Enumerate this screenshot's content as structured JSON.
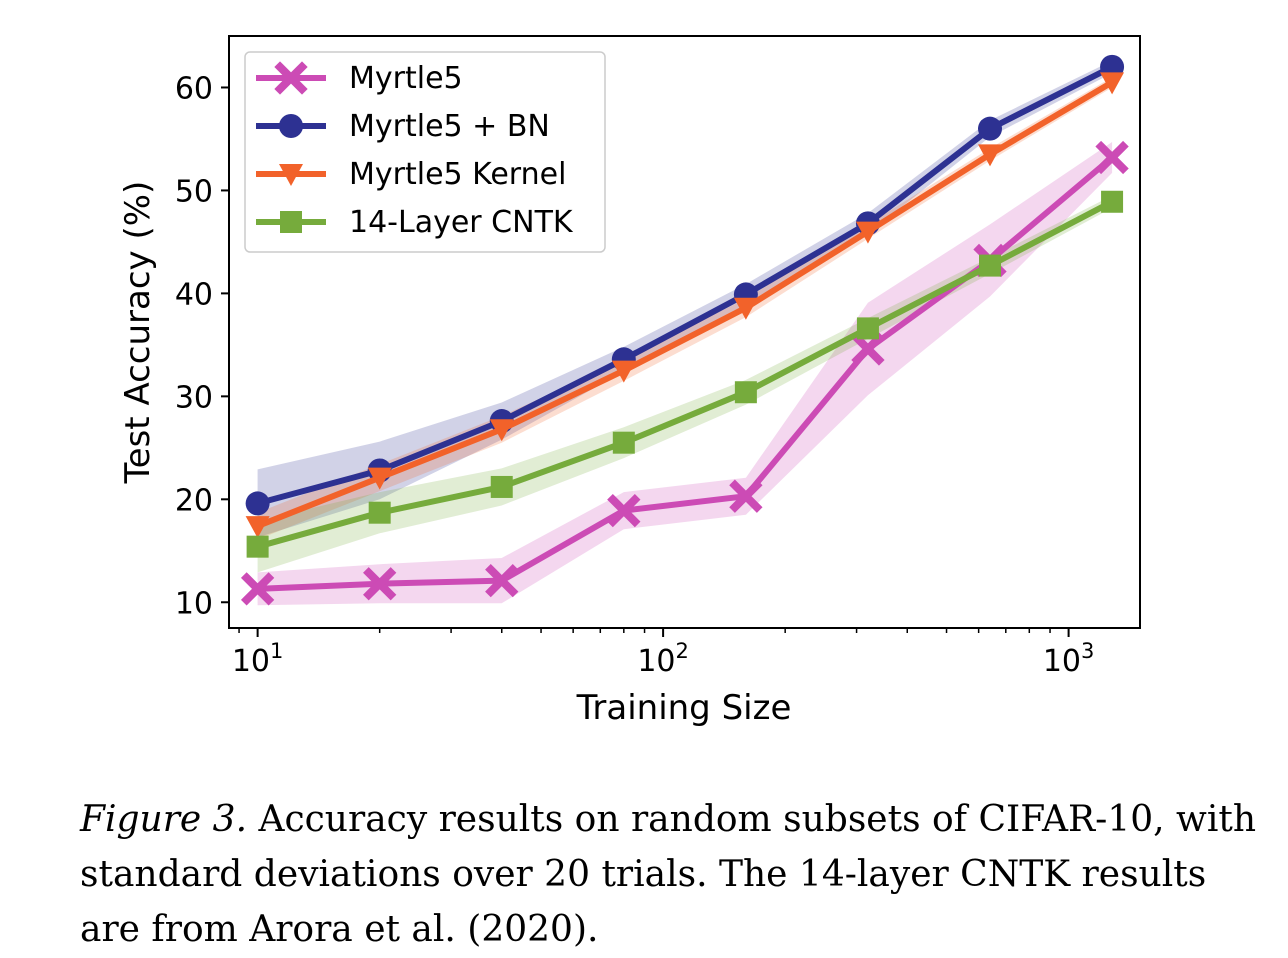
{
  "chart_data": {
    "type": "line",
    "xscale": "log",
    "x": [
      10,
      20,
      40,
      80,
      160,
      320,
      640,
      1280
    ],
    "xlim": [
      8.5,
      1500
    ],
    "ylim": [
      7.5,
      65
    ],
    "xlabel": "Training Size",
    "ylabel": "Test Accuracy (%)",
    "yticks": [
      10,
      20,
      30,
      40,
      50,
      60
    ],
    "xticks": [
      {
        "value": 10,
        "base": "10",
        "exp": "1"
      },
      {
        "value": 100,
        "base": "10",
        "exp": "2"
      },
      {
        "value": 1000,
        "base": "10",
        "exp": "3"
      }
    ],
    "legend_position": "top-left",
    "series": [
      {
        "name": "Myrtle5",
        "color": "#cc4bb5",
        "marker": "x",
        "values": [
          11.3,
          11.8,
          12.1,
          18.9,
          20.3,
          34.6,
          43.2,
          53.2
        ],
        "std": [
          1.6,
          1.9,
          2.2,
          1.8,
          1.8,
          4.5,
          3.5,
          1.5
        ]
      },
      {
        "name": "Myrtle5 + BN",
        "color": "#2d3192",
        "marker": "circle",
        "values": [
          19.6,
          22.8,
          27.6,
          33.6,
          39.9,
          46.8,
          56.0,
          62.0
        ],
        "std": [
          3.3,
          2.8,
          1.8,
          1.2,
          1.0,
          1.0,
          0.8,
          0.6
        ]
      },
      {
        "name": "Myrtle5 Kernel",
        "color": "#f2622a",
        "marker": "triangle",
        "values": [
          17.4,
          22.1,
          26.8,
          32.5,
          38.6,
          46.0,
          53.5,
          60.5
        ],
        "std": [
          1.3,
          1.3,
          1.3,
          1.0,
          0.9,
          0.7,
          0.6,
          0.5
        ]
      },
      {
        "name": "14-Layer CNTK",
        "color": "#76ab3c",
        "marker": "square",
        "values": [
          15.4,
          18.7,
          21.2,
          25.5,
          30.4,
          36.6,
          42.7,
          48.9
        ],
        "std": [
          2.5,
          2.0,
          1.8,
          1.5,
          1.2,
          1.0,
          0.8,
          0.6
        ]
      }
    ]
  },
  "caption": {
    "label": "Figure 3.",
    "text": " Accuracy results on random subsets of CIFAR-10, with standard deviations over 20 trials. The 14-layer CNTK results are from Arora et al. (2020)."
  }
}
